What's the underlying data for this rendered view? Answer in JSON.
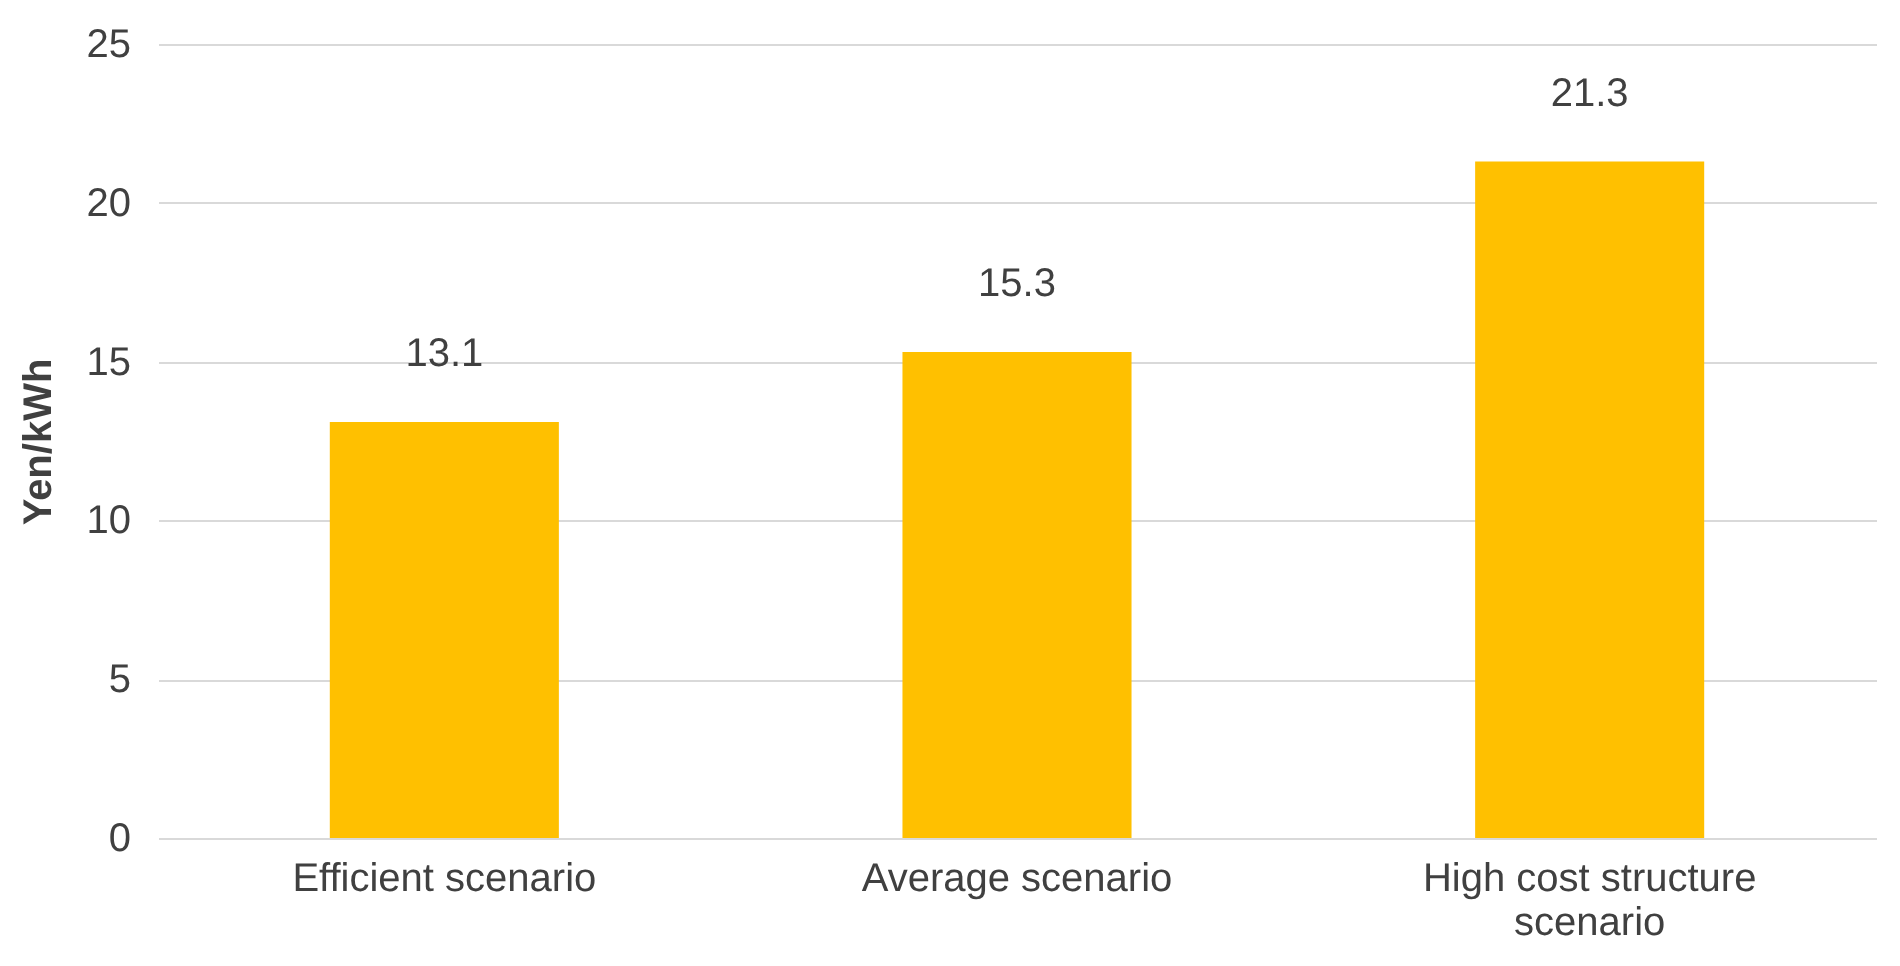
{
  "chart_data": {
    "type": "bar",
    "ylabel": "Yen/kWh",
    "categories": [
      "Efficient scenario",
      "Average scenario",
      "High cost structure scenario"
    ],
    "values": [
      13.1,
      15.3,
      21.3
    ],
    "color": "#ffc000",
    "ylim": [
      0,
      25
    ],
    "yticks": [
      0,
      5,
      10,
      15,
      20,
      25
    ],
    "grid": "y",
    "data_labels": true
  }
}
